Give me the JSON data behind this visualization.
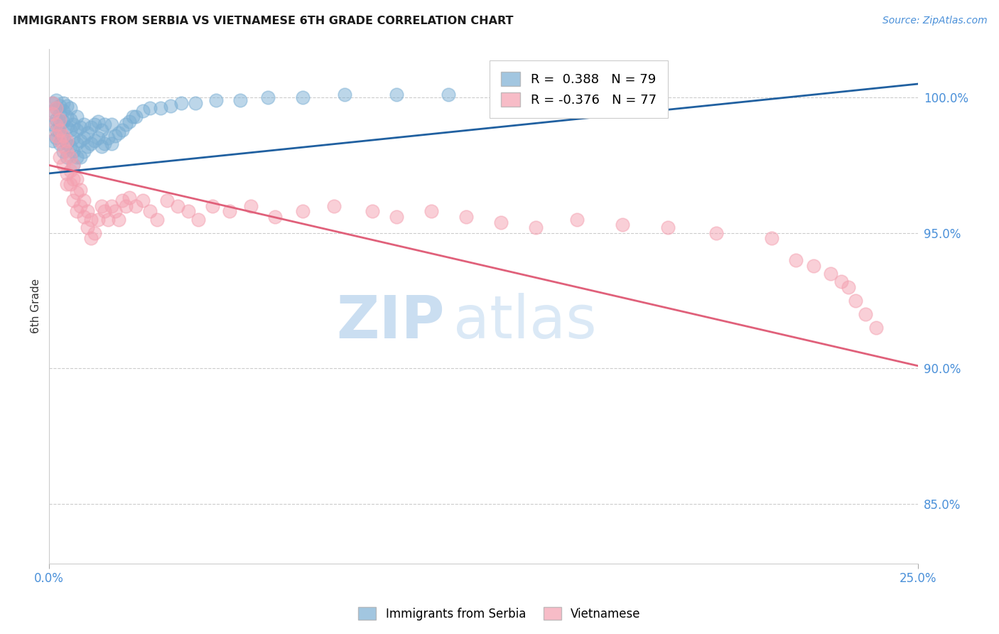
{
  "title": "IMMIGRANTS FROM SERBIA VS VIETNAMESE 6TH GRADE CORRELATION CHART",
  "source": "Source: ZipAtlas.com",
  "ylabel": "6th Grade",
  "y_ticks": [
    0.85,
    0.9,
    0.95,
    1.0
  ],
  "y_tick_labels": [
    "85.0%",
    "90.0%",
    "95.0%",
    "100.0%"
  ],
  "x_min": 0.0,
  "x_max": 0.25,
  "y_min": 0.828,
  "y_max": 1.018,
  "serbia_R": 0.388,
  "serbia_N": 79,
  "vietnamese_R": -0.376,
  "vietnamese_N": 77,
  "serbia_color": "#7bafd4",
  "vietnamese_color": "#f4a0b0",
  "serbia_line_color": "#2060a0",
  "vietnamese_line_color": "#e0607a",
  "watermark_zip": "ZIP",
  "watermark_atlas": "atlas",
  "serbia_line_x0": 0.0,
  "serbia_line_y0": 0.972,
  "serbia_line_x1": 0.25,
  "serbia_line_y1": 1.005,
  "vietnamese_line_x0": 0.0,
  "vietnamese_line_y0": 0.975,
  "vietnamese_line_x1": 0.25,
  "vietnamese_line_y1": 0.901,
  "serbia_scatter_x": [
    0.001,
    0.001,
    0.001,
    0.001,
    0.002,
    0.002,
    0.002,
    0.002,
    0.002,
    0.003,
    0.003,
    0.003,
    0.003,
    0.003,
    0.004,
    0.004,
    0.004,
    0.004,
    0.004,
    0.005,
    0.005,
    0.005,
    0.005,
    0.005,
    0.006,
    0.006,
    0.006,
    0.006,
    0.007,
    0.007,
    0.007,
    0.007,
    0.008,
    0.008,
    0.008,
    0.008,
    0.009,
    0.009,
    0.009,
    0.01,
    0.01,
    0.01,
    0.011,
    0.011,
    0.012,
    0.012,
    0.013,
    0.013,
    0.014,
    0.014,
    0.015,
    0.015,
    0.016,
    0.016,
    0.017,
    0.018,
    0.018,
    0.019,
    0.02,
    0.021,
    0.022,
    0.023,
    0.024,
    0.025,
    0.027,
    0.029,
    0.032,
    0.035,
    0.038,
    0.042,
    0.048,
    0.055,
    0.063,
    0.073,
    0.085,
    0.1,
    0.115,
    0.135,
    0.16
  ],
  "serbia_scatter_y": [
    0.99,
    0.995,
    0.998,
    0.984,
    0.988,
    0.992,
    0.996,
    0.999,
    0.985,
    0.99,
    0.994,
    0.997,
    0.983,
    0.987,
    0.985,
    0.991,
    0.995,
    0.998,
    0.98,
    0.983,
    0.989,
    0.993,
    0.997,
    0.978,
    0.982,
    0.988,
    0.992,
    0.996,
    0.98,
    0.985,
    0.99,
    0.975,
    0.978,
    0.983,
    0.988,
    0.993,
    0.978,
    0.984,
    0.989,
    0.98,
    0.985,
    0.99,
    0.982,
    0.987,
    0.983,
    0.989,
    0.984,
    0.99,
    0.985,
    0.991,
    0.982,
    0.988,
    0.983,
    0.99,
    0.985,
    0.983,
    0.99,
    0.986,
    0.987,
    0.988,
    0.99,
    0.991,
    0.993,
    0.993,
    0.995,
    0.996,
    0.996,
    0.997,
    0.998,
    0.998,
    0.999,
    0.999,
    1.0,
    1.0,
    1.001,
    1.001,
    1.001,
    1.002,
    1.003
  ],
  "vietnamese_scatter_x": [
    0.001,
    0.001,
    0.002,
    0.002,
    0.002,
    0.003,
    0.003,
    0.003,
    0.003,
    0.004,
    0.004,
    0.004,
    0.005,
    0.005,
    0.005,
    0.005,
    0.006,
    0.006,
    0.006,
    0.007,
    0.007,
    0.007,
    0.008,
    0.008,
    0.008,
    0.009,
    0.009,
    0.01,
    0.01,
    0.011,
    0.011,
    0.012,
    0.012,
    0.013,
    0.014,
    0.015,
    0.016,
    0.017,
    0.018,
    0.019,
    0.02,
    0.021,
    0.022,
    0.023,
    0.025,
    0.027,
    0.029,
    0.031,
    0.034,
    0.037,
    0.04,
    0.043,
    0.047,
    0.052,
    0.058,
    0.065,
    0.073,
    0.082,
    0.093,
    0.1,
    0.11,
    0.12,
    0.13,
    0.14,
    0.152,
    0.165,
    0.178,
    0.192,
    0.208,
    0.215,
    0.22,
    0.225,
    0.228,
    0.23,
    0.232,
    0.235,
    0.238
  ],
  "vietnamese_scatter_y": [
    0.998,
    0.994,
    0.996,
    0.99,
    0.986,
    0.992,
    0.988,
    0.984,
    0.978,
    0.986,
    0.982,
    0.975,
    0.984,
    0.98,
    0.972,
    0.968,
    0.978,
    0.973,
    0.968,
    0.975,
    0.97,
    0.962,
    0.97,
    0.965,
    0.958,
    0.966,
    0.96,
    0.962,
    0.956,
    0.958,
    0.952,
    0.955,
    0.948,
    0.95,
    0.955,
    0.96,
    0.958,
    0.955,
    0.96,
    0.958,
    0.955,
    0.962,
    0.96,
    0.963,
    0.96,
    0.962,
    0.958,
    0.955,
    0.962,
    0.96,
    0.958,
    0.955,
    0.96,
    0.958,
    0.96,
    0.956,
    0.958,
    0.96,
    0.958,
    0.956,
    0.958,
    0.956,
    0.954,
    0.952,
    0.955,
    0.953,
    0.952,
    0.95,
    0.948,
    0.94,
    0.938,
    0.935,
    0.932,
    0.93,
    0.925,
    0.92,
    0.915
  ]
}
